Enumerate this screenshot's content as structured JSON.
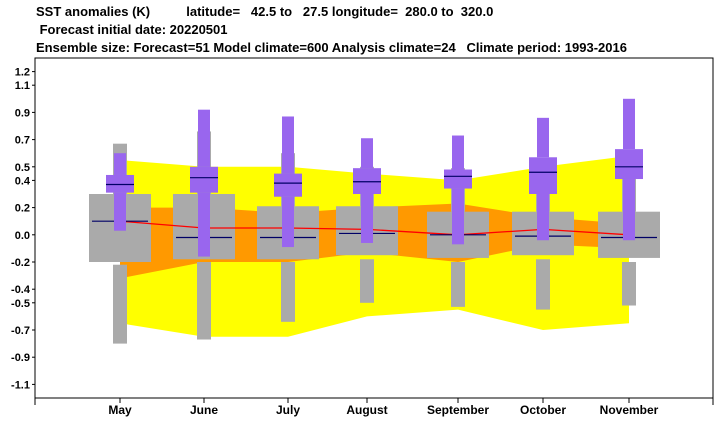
{
  "header": {
    "line1": "SST anomalies (K)          latitude=   42.5 to   27.5 longitude=  280.0 to  320.0",
    "line2": " Forecast initial date: 20220501",
    "line3": "Ensemble size: Forecast=51 Model climate=600 Analysis climate=24   Climate period: 1993-2016"
  },
  "colors": {
    "climate_outer": "#ffff00",
    "climate_inner": "#ff9900",
    "climate_median": "#ff0000",
    "model_box": "#aaaaaa",
    "forecast_box": "#9966ee",
    "median_line": "#000066"
  },
  "chart_data": {
    "type": "box",
    "categories": [
      "May",
      "June",
      "July",
      "August",
      "September",
      "October",
      "November"
    ],
    "ylim": [
      -1.2,
      1.3
    ],
    "yticks": [
      "1.2",
      "1.1",
      "0.9",
      "0.7",
      "0.5",
      "0.4",
      "0.2",
      "0.0",
      "-0.2",
      "-0.4",
      "-0.5",
      "-0.7",
      "-0.9",
      "-1.1"
    ],
    "ytick_values": [
      1.2,
      1.1,
      0.9,
      0.7,
      0.5,
      0.4,
      0.2,
      0.0,
      -0.2,
      -0.4,
      -0.5,
      -0.7,
      -0.9,
      -1.1
    ],
    "climate_band": {
      "outer_upper": [
        0.55,
        0.5,
        0.5,
        0.45,
        0.4,
        0.5,
        0.58
      ],
      "outer_lower": [
        -0.65,
        -0.75,
        -0.75,
        -0.6,
        -0.55,
        -0.7,
        -0.65
      ],
      "inner_upper": [
        0.2,
        0.2,
        0.16,
        0.2,
        0.23,
        0.13,
        0.08
      ],
      "inner_lower": [
        -0.32,
        -0.2,
        -0.2,
        -0.13,
        -0.2,
        -0.07,
        -0.1
      ],
      "median": [
        0.1,
        0.05,
        0.05,
        0.04,
        0.0,
        0.04,
        0.0
      ]
    },
    "model_climate": {
      "min": [
        -0.8,
        -0.77,
        -0.64,
        -0.5,
        -0.53,
        -0.55,
        -0.52
      ],
      "p10": [
        -0.22,
        -0.2,
        -0.2,
        -0.18,
        -0.2,
        -0.18,
        -0.2
      ],
      "p25": [
        -0.2,
        -0.18,
        -0.18,
        -0.15,
        -0.17,
        -0.15,
        -0.17
      ],
      "median": [
        0.1,
        -0.02,
        -0.02,
        0.01,
        0.0,
        -0.01,
        -0.02
      ],
      "p75": [
        0.3,
        0.3,
        0.21,
        0.21,
        0.17,
        0.17,
        0.17
      ],
      "p90": [
        0.3,
        0.3,
        0.21,
        0.21,
        0.17,
        0.17,
        0.17
      ],
      "max": [
        0.67,
        0.76,
        0.6,
        0.5,
        0.49,
        0.51,
        0.5
      ]
    },
    "forecast": {
      "min": [
        0.03,
        -0.16,
        -0.09,
        -0.06,
        -0.07,
        -0.04,
        -0.04
      ],
      "p25": [
        0.31,
        0.31,
        0.28,
        0.3,
        0.34,
        0.3,
        0.41
      ],
      "median": [
        0.37,
        0.42,
        0.38,
        0.39,
        0.43,
        0.46,
        0.5
      ],
      "p75": [
        0.44,
        0.5,
        0.45,
        0.49,
        0.48,
        0.57,
        0.63
      ],
      "max": [
        0.6,
        0.92,
        0.87,
        0.71,
        0.73,
        0.86,
        1.0
      ]
    }
  }
}
